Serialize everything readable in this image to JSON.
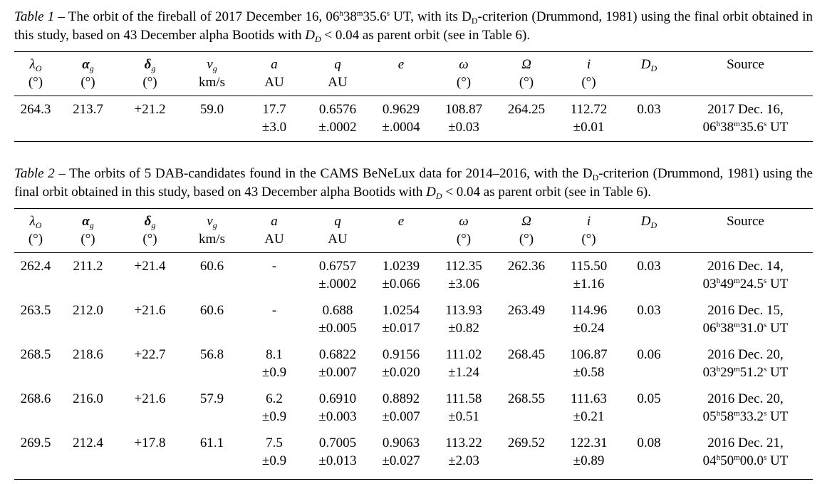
{
  "table1": {
    "caption_label": "Table 1",
    "caption_prefix": " – The orbit of the fireball of 2017 December 16, 06",
    "caption_time": {
      "h": "h",
      "m": "m",
      "s": "s",
      "mm": "38",
      "ss": "35.6"
    },
    "caption_after_time": " UT, with its D",
    "caption_mid": "-criterion (Drummond, 1981) using the final orbit obtained in this study, based on 43 December alpha Bootids with ",
    "caption_end": " < 0.04 as parent orbit (see in Table 6).",
    "rows": [
      {
        "lambda": "264.3",
        "alpha": "213.7",
        "delta": "+21.2",
        "vg": "59.0",
        "a": "17.7",
        "a_err": "±3.0",
        "q": "0.6576",
        "q_err": "±.0002",
        "e": "0.9629",
        "e_err": "±.0004",
        "omega": "108.87",
        "omega_err": "±0.03",
        "Omega": "264.25",
        "i": "112.72",
        "i_err": "±0.01",
        "D": "0.03",
        "src_date": "2017 Dec. 16,",
        "src_hh": "06",
        "src_mm": "38",
        "src_ss": "35.6",
        "src_ut": " UT"
      }
    ]
  },
  "table2": {
    "caption_label": "Table 2",
    "caption_prefix": " – The orbits of 5 DAB-candidates found in the CAMS BeNeLux data for 2014–2016, with the D",
    "caption_mid": "-criterion (Drummond, 1981) using the final orbit obtained in this study, based on 43 December alpha Bootids with ",
    "caption_end": " < 0.04 as parent orbit (see in Table 6).",
    "rows": [
      {
        "lambda": "262.4",
        "alpha": "211.2",
        "delta": "+21.4",
        "vg": "60.6",
        "a": "-",
        "a_err": "",
        "q": "0.6757",
        "q_err": "±.0002",
        "e": "1.0239",
        "e_err": "±0.066",
        "omega": "112.35",
        "omega_err": "±3.06",
        "Omega": "262.36",
        "i": "115.50",
        "i_err": "±1.16",
        "D": "0.03",
        "src_date": "2016 Dec. 14,",
        "src_hh": "03",
        "src_mm": "49",
        "src_ss": "24.5",
        "src_ut": " UT"
      },
      {
        "lambda": "263.5",
        "alpha": "212.0",
        "delta": "+21.6",
        "vg": "60.6",
        "a": "-",
        "a_err": "",
        "q": "0.688",
        "q_err": "±0.005",
        "e": "1.0254",
        "e_err": "±0.017",
        "omega": "113.93",
        "omega_err": "±0.82",
        "Omega": "263.49",
        "i": "114.96",
        "i_err": "±0.24",
        "D": "0.03",
        "src_date": "2016 Dec. 15,",
        "src_hh": "06",
        "src_mm": "38",
        "src_ss": "31.0",
        "src_ut": " UT"
      },
      {
        "lambda": "268.5",
        "alpha": "218.6",
        "delta": "+22.7",
        "vg": "56.8",
        "a": "8.1",
        "a_err": "±0.9",
        "q": "0.6822",
        "q_err": "±0.007",
        "e": "0.9156",
        "e_err": "±0.020",
        "omega": "111.02",
        "omega_err": "±1.24",
        "Omega": "268.45",
        "i": "106.87",
        "i_err": "±0.58",
        "D": "0.06",
        "src_date": "2016 Dec. 20,",
        "src_hh": "03",
        "src_mm": "29",
        "src_ss": "51.2",
        "src_ut": " UT"
      },
      {
        "lambda": "268.6",
        "alpha": "216.0",
        "delta": "+21.6",
        "vg": "57.9",
        "a": "6.2",
        "a_err": "±0.9",
        "q": "0.6910",
        "q_err": "±0.003",
        "e": "0.8892",
        "e_err": "±0.007",
        "omega": "111.58",
        "omega_err": "±0.51",
        "Omega": "268.55",
        "i": "111.63",
        "i_err": "±0.21",
        "D": "0.05",
        "src_date": "2016 Dec. 20,",
        "src_hh": "05",
        "src_mm": "58",
        "src_ss": "33.2",
        "src_ut": " UT"
      },
      {
        "lambda": "269.5",
        "alpha": "212.4",
        "delta": "+17.8",
        "vg": "61.1",
        "a": "7.5",
        "a_err": "±0.9",
        "q": "0.7005",
        "q_err": "±0.013",
        "e": "0.9063",
        "e_err": "±0.027",
        "omega": "113.22",
        "omega_err": "±2.03",
        "Omega": "269.52",
        "i": "122.31",
        "i_err": "±0.89",
        "D": "0.08",
        "src_date": "2016 Dec. 21,",
        "src_hh": "04",
        "src_mm": "50",
        "src_ss": "00.0",
        "src_ut": " UT"
      }
    ]
  },
  "headers": {
    "lambda_sym": "λ",
    "lambda_sub": "O",
    "lambda_unit": "(°)",
    "alpha_sym": "α",
    "alpha_sub": "g",
    "alpha_unit": "(°)",
    "delta_sym": "δ",
    "delta_sub": "g",
    "delta_unit": "(°)",
    "vg_sym": "v",
    "vg_sub": "g",
    "vg_unit": "km/s",
    "a_sym": "a",
    "a_unit": "AU",
    "q_sym": "q",
    "q_unit": "AU",
    "e_sym": "e",
    "omega_sym": "ω",
    "omega_unit": "(°)",
    "Omega_sym": "Ω",
    "Omega_unit": "(°)",
    "i_sym": "i",
    "i_unit": "(°)",
    "D_sym": "D",
    "D_sub": "D",
    "source": "Source"
  },
  "dd_letter": "D",
  "dd_sub": "D",
  "time_units": {
    "h": "h",
    "m": "m",
    "s": "s"
  }
}
